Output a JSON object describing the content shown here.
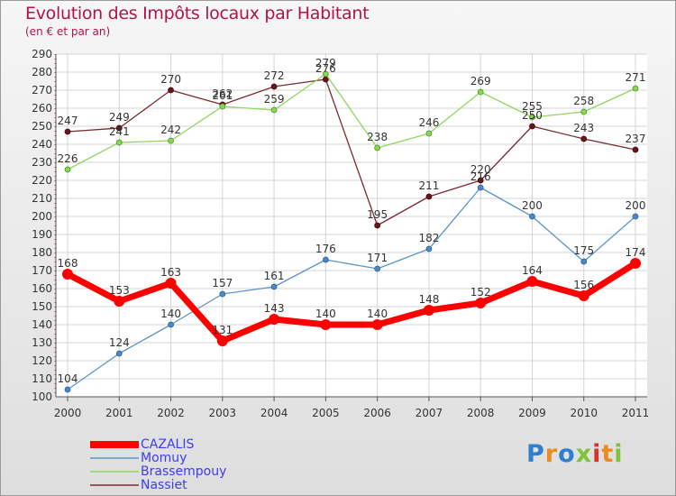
{
  "header": {
    "title": "Evolution des Impôts locaux par Habitant",
    "subtitle": "(en € et par an)"
  },
  "chart_data": {
    "type": "line",
    "title": "Evolution des Impôts locaux par Habitant",
    "subtitle": "(en € et par an)",
    "xlabel": "",
    "ylabel": "",
    "x": [
      "2000",
      "2001",
      "2002",
      "2003",
      "2004",
      "2005",
      "2006",
      "2007",
      "2008",
      "2009",
      "2010",
      "2011"
    ],
    "ylim": [
      100,
      290
    ],
    "yticks": [
      100,
      110,
      120,
      130,
      140,
      150,
      160,
      170,
      180,
      190,
      200,
      210,
      220,
      230,
      240,
      250,
      260,
      270,
      280,
      290
    ],
    "grid": true,
    "legend_position": "bottom-left",
    "series": [
      {
        "name": "CAZALIS",
        "color": "#ff0000",
        "values": [
          168,
          153,
          163,
          131,
          143,
          140,
          140,
          148,
          152,
          164,
          156,
          174
        ]
      },
      {
        "name": "Momuy",
        "color": "#5b95c7",
        "values": [
          104,
          124,
          140,
          157,
          161,
          176,
          171,
          182,
          216,
          200,
          175,
          200
        ]
      },
      {
        "name": "Brassempouy",
        "color": "#8ed660",
        "values": [
          226,
          241,
          242,
          261,
          259,
          279,
          238,
          246,
          269,
          255,
          258,
          271
        ]
      },
      {
        "name": "Nassiet",
        "color": "#7b2a32",
        "values": [
          247,
          249,
          270,
          262,
          272,
          276,
          195,
          211,
          220,
          250,
          243,
          237
        ]
      }
    ]
  },
  "brand": {
    "letters": [
      "P",
      "r",
      "o",
      "x",
      "i",
      "t",
      "i"
    ],
    "colors": [
      "#2f7fd0",
      "#f08a1a",
      "#2f7fd0",
      "#7cc43a",
      "#d6342a",
      "#f08a1a",
      "#7cc43a"
    ]
  }
}
